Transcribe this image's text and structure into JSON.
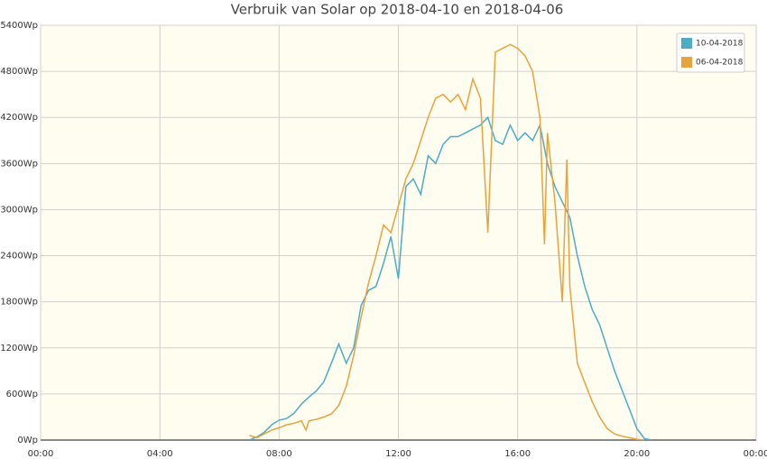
{
  "chart_data": {
    "type": "line",
    "title": "Verbruik van Solar op 2018-04-10 en 2018-04-06",
    "xlim": [
      0,
      24
    ],
    "xticks": [
      {
        "value": 0,
        "label": "00:00"
      },
      {
        "value": 4,
        "label": "04:00"
      },
      {
        "value": 8,
        "label": "08:00"
      },
      {
        "value": 12,
        "label": "12:00"
      },
      {
        "value": 16,
        "label": "16:00"
      },
      {
        "value": 20,
        "label": "20:00"
      },
      {
        "value": 24,
        "label": "00:00"
      }
    ],
    "ylim": [
      0,
      5400
    ],
    "yticks": [
      {
        "value": 0,
        "label": "0Wp"
      },
      {
        "value": 600,
        "label": "600Wp"
      },
      {
        "value": 1200,
        "label": "1200Wp"
      },
      {
        "value": 1800,
        "label": "1800Wp"
      },
      {
        "value": 2400,
        "label": "2400Wp"
      },
      {
        "value": 3000,
        "label": "3000Wp"
      },
      {
        "value": 3600,
        "label": "3600Wp"
      },
      {
        "value": 4200,
        "label": "4200Wp"
      },
      {
        "value": 4800,
        "label": "4800Wp"
      },
      {
        "value": 5400,
        "label": "5400Wp"
      }
    ],
    "grid": true,
    "legend": "top-right",
    "series": [
      {
        "name": "10-04-2018",
        "color": "#4bacc6",
        "x": [
          7.0,
          7.25,
          7.5,
          7.75,
          8.0,
          8.25,
          8.5,
          8.75,
          9.0,
          9.25,
          9.5,
          9.75,
          10.0,
          10.25,
          10.5,
          10.75,
          11.0,
          11.25,
          11.5,
          11.75,
          12.0,
          12.25,
          12.5,
          12.75,
          13.0,
          13.25,
          13.5,
          13.75,
          14.0,
          14.25,
          14.5,
          14.75,
          15.0,
          15.25,
          15.5,
          15.75,
          16.0,
          16.25,
          16.5,
          16.75,
          17.0,
          17.25,
          17.5,
          17.75,
          18.0,
          18.25,
          18.5,
          18.75,
          19.0,
          19.25,
          19.5,
          19.75,
          20.0,
          20.25,
          20.5
        ],
        "values": [
          0,
          40,
          100,
          200,
          260,
          280,
          350,
          470,
          560,
          640,
          760,
          1000,
          1250,
          1000,
          1200,
          1750,
          1950,
          2000,
          2300,
          2650,
          2100,
          3300,
          3400,
          3200,
          3700,
          3600,
          3850,
          3950,
          3950,
          4000,
          4050,
          4100,
          4200,
          3900,
          3850,
          4100,
          3900,
          4000,
          3900,
          4100,
          3600,
          3300,
          3100,
          2900,
          2400,
          2000,
          1700,
          1500,
          1200,
          900,
          650,
          400,
          150,
          20,
          0
        ]
      },
      {
        "name": "06-04-2018",
        "color": "#e8a33d",
        "x": [
          7.0,
          7.25,
          7.5,
          7.75,
          8.0,
          8.25,
          8.5,
          8.75,
          8.9,
          9.0,
          9.25,
          9.5,
          9.75,
          10.0,
          10.25,
          10.5,
          10.75,
          11.0,
          11.25,
          11.5,
          11.75,
          12.0,
          12.25,
          12.5,
          12.75,
          13.0,
          13.25,
          13.5,
          13.75,
          14.0,
          14.25,
          14.5,
          14.75,
          15.0,
          15.25,
          15.5,
          15.75,
          16.0,
          16.25,
          16.5,
          16.75,
          16.9,
          17.0,
          17.25,
          17.5,
          17.65,
          17.75,
          18.0,
          18.25,
          18.5,
          18.75,
          19.0,
          19.25,
          19.5,
          19.75,
          20.0,
          20.25
        ],
        "values": [
          60,
          30,
          80,
          130,
          160,
          200,
          220,
          250,
          130,
          250,
          270,
          300,
          340,
          450,
          700,
          1100,
          1600,
          2050,
          2400,
          2800,
          2700,
          3050,
          3400,
          3600,
          3900,
          4200,
          4450,
          4500,
          4400,
          4500,
          4300,
          4700,
          4450,
          2700,
          5050,
          5100,
          5150,
          5100,
          5000,
          4800,
          4200,
          2550,
          4000,
          3100,
          1800,
          3650,
          2000,
          1000,
          750,
          500,
          300,
          150,
          80,
          50,
          30,
          10,
          0
        ]
      }
    ]
  }
}
